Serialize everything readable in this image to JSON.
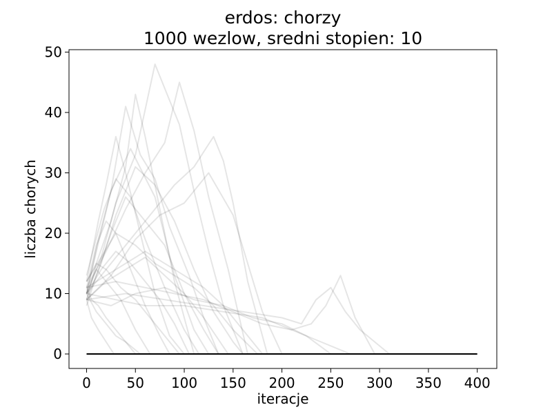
{
  "chart_data": {
    "type": "line",
    "title": "erdos: chorzy",
    "subtitle": "1000 wezlow, sredni stopien: 10",
    "xlabel": "iteracje",
    "ylabel": "liczba chorych",
    "xlim": [
      -18,
      420
    ],
    "ylim": [
      -2.4,
      50.4
    ],
    "xticks": [
      0,
      50,
      100,
      150,
      200,
      250,
      300,
      350,
      400
    ],
    "yticks": [
      0,
      10,
      20,
      30,
      40,
      50
    ],
    "grid": false,
    "legend": "none",
    "colors": {
      "line": "#000000",
      "axes": "#000000",
      "background": "#ffffff"
    },
    "line_alpha": 0.1,
    "baseline": {
      "x": [
        0,
        400
      ],
      "y": [
        0,
        0
      ]
    },
    "series": [
      {
        "x": [
          0,
          10,
          25,
          45,
          70,
          90,
          110,
          125
        ],
        "y": [
          10,
          17,
          27,
          34,
          26,
          13,
          4,
          0
        ]
      },
      {
        "x": [
          0,
          12,
          20,
          30,
          40,
          55,
          70,
          85,
          100
        ],
        "y": [
          12,
          22,
          28,
          36,
          30,
          20,
          10,
          3,
          0
        ]
      },
      {
        "x": [
          0,
          10,
          20,
          30,
          45,
          60,
          75,
          85
        ],
        "y": [
          11,
          18,
          22,
          20,
          14,
          8,
          3,
          0
        ]
      },
      {
        "x": [
          0,
          15,
          30,
          50,
          70,
          90,
          110,
          130,
          150,
          160
        ],
        "y": [
          9,
          15,
          23,
          31,
          28,
          22,
          14,
          7,
          2,
          0
        ]
      },
      {
        "x": [
          0,
          10,
          20,
          35,
          50,
          65
        ],
        "y": [
          10,
          14,
          12,
          9,
          4,
          0
        ]
      },
      {
        "x": [
          0,
          8,
          18,
          30,
          45,
          60,
          80,
          100,
          115
        ],
        "y": [
          13,
          18,
          24,
          29,
          26,
          19,
          11,
          4,
          0
        ]
      },
      {
        "x": [
          0,
          10,
          25,
          40,
          60,
          80,
          100,
          120,
          135
        ],
        "y": [
          8,
          13,
          20,
          26,
          22,
          18,
          10,
          4,
          0
        ]
      },
      {
        "x": [
          0,
          5,
          12,
          20,
          30,
          40,
          55
        ],
        "y": [
          11,
          9,
          8,
          6,
          4,
          2,
          0
        ]
      },
      {
        "x": [
          0,
          12,
          25,
          40,
          55,
          70,
          85,
          105,
          120,
          135
        ],
        "y": [
          10,
          19,
          27,
          41,
          33,
          29,
          21,
          13,
          6,
          0
        ]
      },
      {
        "x": [
          0,
          10,
          25,
          40,
          50,
          60,
          75,
          90,
          110
        ],
        "y": [
          9,
          15,
          22,
          31,
          43,
          36,
          24,
          12,
          0
        ]
      },
      {
        "x": [
          0,
          15,
          30,
          50,
          70,
          80,
          95,
          110,
          125,
          140,
          160
        ],
        "y": [
          10,
          16,
          25,
          33,
          48,
          44,
          38,
          27,
          17,
          8,
          0
        ]
      },
      {
        "x": [
          0,
          20,
          40,
          60,
          80,
          95,
          110,
          125,
          145,
          165
        ],
        "y": [
          11,
          17,
          24,
          30,
          35,
          45,
          37,
          26,
          14,
          0
        ]
      },
      {
        "x": [
          0,
          20,
          45,
          70,
          90,
          110,
          130,
          140,
          150,
          165,
          185
        ],
        "y": [
          10,
          14,
          19,
          24,
          28,
          31,
          36,
          32,
          25,
          12,
          0
        ]
      },
      {
        "x": [
          0,
          25,
          50,
          75,
          100,
          125,
          150,
          165,
          180,
          200
        ],
        "y": [
          9,
          13,
          19,
          23,
          25,
          30,
          23,
          15,
          7,
          0
        ]
      },
      {
        "x": [
          0,
          15,
          30,
          50,
          70,
          90,
          110,
          130,
          150,
          175
        ],
        "y": [
          12,
          16,
          20,
          18,
          15,
          13,
          11,
          8,
          4,
          0
        ]
      },
      {
        "x": [
          0,
          25,
          50,
          80,
          110,
          140,
          170,
          200,
          225,
          250
        ],
        "y": [
          9,
          8,
          10,
          11,
          9,
          8,
          6,
          5,
          3,
          0
        ]
      },
      {
        "x": [
          0,
          30,
          60,
          100,
          140,
          180,
          210,
          230,
          245,
          260,
          275,
          295
        ],
        "y": [
          10,
          9,
          8,
          8,
          7,
          6,
          4,
          5,
          8,
          13,
          6,
          0
        ]
      },
      {
        "x": [
          0,
          40,
          80,
          120,
          160,
          200,
          220,
          235,
          250,
          265,
          280,
          310
        ],
        "y": [
          9,
          10,
          9,
          8,
          7,
          6,
          5,
          9,
          11,
          7,
          4,
          0
        ]
      },
      {
        "x": [
          0,
          30,
          60,
          90,
          120,
          150,
          180,
          210,
          240,
          270
        ],
        "y": [
          11,
          12,
          11,
          10,
          9,
          7,
          5,
          4,
          2,
          0
        ]
      },
      {
        "x": [
          0,
          10,
          20,
          30,
          40,
          50
        ],
        "y": [
          10,
          7,
          5,
          3,
          2,
          0
        ]
      },
      {
        "x": [
          0,
          10,
          20,
          35,
          50,
          65,
          80,
          95
        ],
        "y": [
          12,
          15,
          14,
          11,
          9,
          6,
          3,
          0
        ]
      },
      {
        "x": [
          0,
          15,
          30,
          45,
          60,
          75,
          90,
          105
        ],
        "y": [
          10,
          14,
          17,
          15,
          12,
          9,
          5,
          0
        ]
      },
      {
        "x": [
          0,
          20,
          40,
          60,
          80,
          100,
          120,
          145
        ],
        "y": [
          9,
          12,
          14,
          16,
          13,
          10,
          6,
          0
        ]
      },
      {
        "x": [
          0,
          20,
          40,
          60,
          80,
          100,
          120,
          140,
          160,
          180
        ],
        "y": [
          11,
          13,
          15,
          17,
          15,
          13,
          11,
          8,
          4,
          0
        ]
      },
      {
        "x": [
          0,
          5,
          12,
          20,
          28
        ],
        "y": [
          9,
          6,
          4,
          2,
          0
        ]
      }
    ]
  }
}
